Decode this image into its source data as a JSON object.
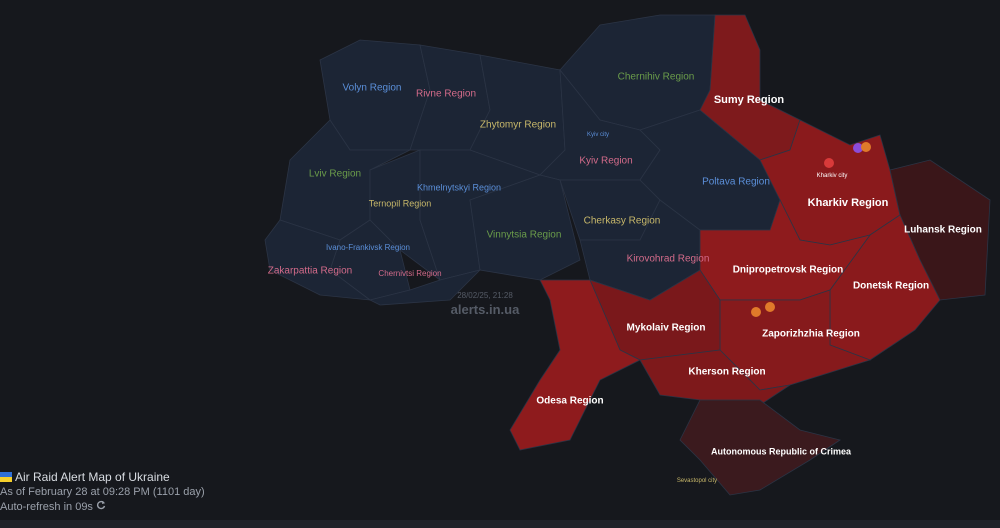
{
  "header": {
    "title": "Air Raid Alert Map of Ukraine",
    "as_of": "As of February 28 at 09:28 PM",
    "day_count": "(1101 day)",
    "refresh": "Auto-refresh in 09s"
  },
  "watermark": {
    "timestamp": "28/02/25, 21:28",
    "site": "alerts.in.ua"
  },
  "regions": [
    {
      "label": "Volyn Region",
      "color": "#1c2535",
      "label_color": "#5b8fd9"
    },
    {
      "label": "Rivne Region",
      "color": "#1c2535",
      "label_color": "#d36b8a"
    },
    {
      "label": "Zhytomyr Region",
      "color": "#1c2535",
      "label_color": "#c8b86a"
    },
    {
      "label": "Chernihiv Region",
      "color": "#1c2535",
      "label_color": "#6a9c4a"
    },
    {
      "label": "Kyiv Region",
      "color": "#1c2535",
      "label_color": "#d36b8a"
    },
    {
      "label": "Lviv Region",
      "color": "#1c2535",
      "label_color": "#6a9c4a"
    },
    {
      "label": "Ternopil Region",
      "color": "#1c2535",
      "label_color": "#c8b86a"
    },
    {
      "label": "Khmelnytskyi Region",
      "color": "#1c2535",
      "label_color": "#5b8fd9"
    },
    {
      "label": "Vinnytsia Region",
      "color": "#1c2535",
      "label_color": "#6a9c4a"
    },
    {
      "label": "Cherkasy Region",
      "color": "#1c2535",
      "label_color": "#c8b86a"
    },
    {
      "label": "Kirovohrad Region",
      "color": "#1c2535",
      "label_color": "#d36b8a"
    },
    {
      "label": "Poltava Region",
      "color": "#1c2535",
      "label_color": "#5b8fd9"
    },
    {
      "label": "Ivano-Frankivsk Region",
      "color": "#1c2535",
      "label_color": "#5b8fd9"
    },
    {
      "label": "Zakarpattia Region",
      "color": "#1c2535",
      "label_color": "#d36b8a"
    },
    {
      "label": "Chernivtsi Region",
      "color": "#1c2535",
      "label_color": "#d36b8a"
    },
    {
      "label": "Sumy Region",
      "color": "#7e1a1c",
      "label_color": "#ffffff"
    },
    {
      "label": "Kharkiv Region",
      "color": "#8a1a1c",
      "label_color": "#ffffff"
    },
    {
      "label": "Luhansk Region",
      "color": "#3a1619",
      "label_color": "#ffffff"
    },
    {
      "label": "Donetsk Region",
      "color": "#8a1a1c",
      "label_color": "#ffffff"
    },
    {
      "label": "Dnipropetrovsk Region",
      "color": "#8e1b1d",
      "label_color": "#ffffff"
    },
    {
      "label": "Zaporizhzhia Region",
      "color": "#861a1c",
      "label_color": "#ffffff"
    },
    {
      "label": "Mykolaiv Region",
      "color": "#7a181b",
      "label_color": "#ffffff"
    },
    {
      "label": "Kherson Region",
      "color": "#7e191b",
      "label_color": "#ffffff"
    },
    {
      "label": "Odesa Region",
      "color": "#8e1b1d",
      "label_color": "#ffffff"
    },
    {
      "label": "Autonomous Republic of Crimea",
      "color": "#3b1a1e",
      "label_color": "#ffffff"
    }
  ],
  "cities": [
    {
      "label": "Kyiv city",
      "color": "#5b8fd9"
    },
    {
      "label": "Kharkiv city",
      "color": "#ffffff"
    },
    {
      "label": "Sevastopol city",
      "color": "#c8b86a"
    }
  ]
}
